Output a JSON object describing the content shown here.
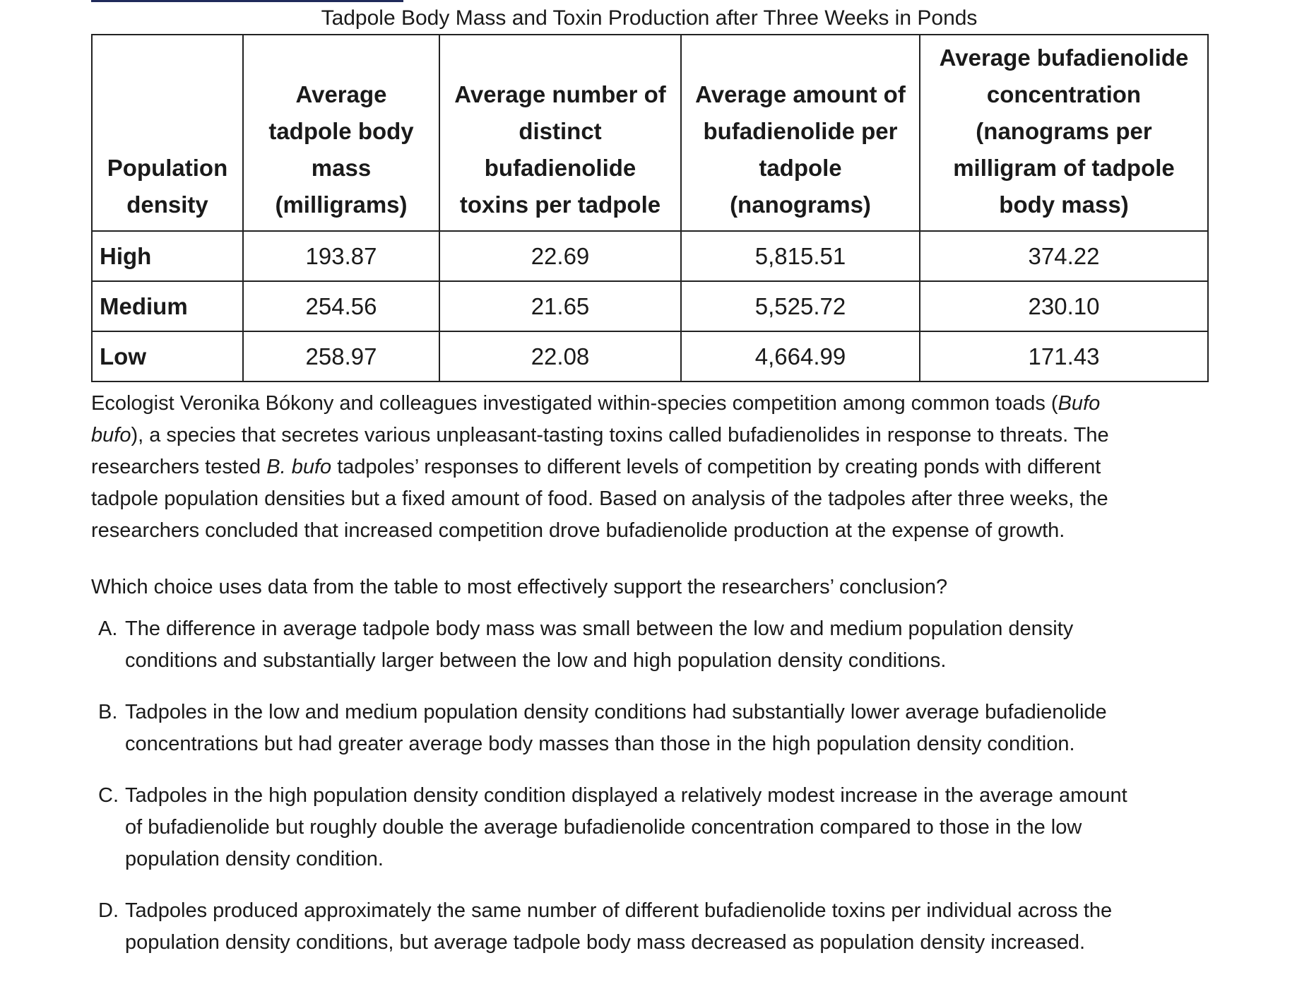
{
  "table": {
    "title": "Tadpole Body Mass and Toxin Production after Three Weeks in Ponds",
    "headers": [
      [
        "Population",
        "density"
      ],
      [
        "Average",
        "tadpole body",
        "mass",
        "(milligrams)"
      ],
      [
        "Average number of",
        "distinct",
        "bufadienolide",
        "toxins per tadpole"
      ],
      [
        "Average amount of",
        "bufadienolide per",
        "tadpole",
        "(nanograms)"
      ],
      [
        "Average bufadienolide",
        "concentration",
        "(nanograms per",
        "milligram of tadpole",
        "body mass)"
      ]
    ],
    "rows": [
      [
        "High",
        "193.87",
        "22.69",
        "5,815.51",
        "374.22"
      ],
      [
        "Medium",
        "254.56",
        "21.65",
        "5,525.72",
        "230.10"
      ],
      [
        "Low",
        "258.97",
        "22.08",
        "4,664.99",
        "171.43"
      ]
    ]
  },
  "passage": {
    "line1_a": "Ecologist Veronika Bókony and colleagues investigated within-species competition among common toads (",
    "line1_italic": "Bufo",
    "line2_italic": "bufo",
    "line2_b": "), a species that secretes various unpleasant-tasting toxins called bufadienolides in response to threats. The",
    "line3_a": "researchers tested ",
    "line3_italic": "B. bufo",
    "line3_b": " tadpoles’ responses to different levels of competition by creating ponds with different",
    "line4": "tadpole population densities but a fixed amount of food. Based on analysis of the tadpoles after three weeks, the",
    "line5": "researchers concluded that increased competition drove bufadienolide production at the expense of growth."
  },
  "question": "Which choice uses data from the table to most effectively support the researchers’ conclusion?",
  "choices": [
    {
      "letter": "A.",
      "lines": [
        "The difference in average tadpole body mass was small between the low and medium population density",
        "conditions and substantially larger between the low and high population density conditions."
      ]
    },
    {
      "letter": "B.",
      "lines": [
        "Tadpoles in the low and medium population density conditions had substantially lower average bufadienolide",
        "concentrations but had greater average body masses than those in the high population density condition."
      ]
    },
    {
      "letter": "C.",
      "lines": [
        "Tadpoles in the high population density condition displayed a relatively modest increase in the average amount",
        "of bufadienolide but roughly double the average bufadienolide concentration compared to those in the low",
        "population density condition."
      ]
    },
    {
      "letter": "D.",
      "lines": [
        "Tadpoles produced approximately the same number of different bufadienolide toxins per individual across the",
        "population density conditions, but average tadpole body mass decreased as population density increased."
      ]
    }
  ]
}
